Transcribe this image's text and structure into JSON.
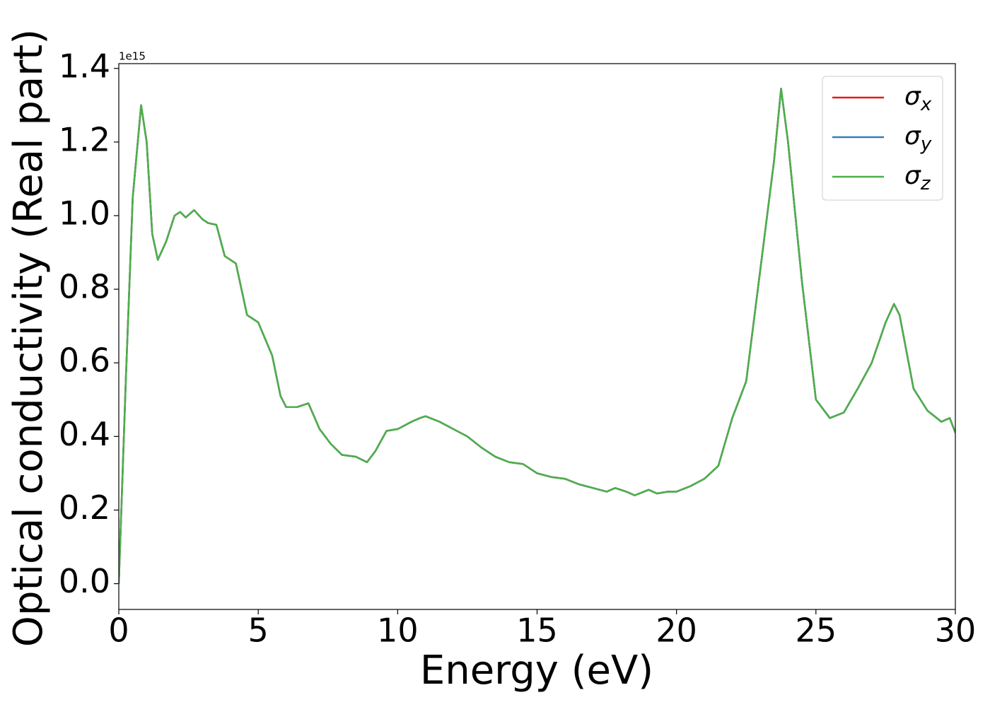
{
  "chart_data": {
    "type": "line",
    "x_label": "Energy (eV)",
    "y_label": "Optical conductivity (Real part)",
    "y_offset_text": "1e15",
    "x": [
      0,
      0.25,
      0.5,
      0.8,
      1.0,
      1.2,
      1.4,
      1.7,
      2.0,
      2.2,
      2.4,
      2.7,
      3.0,
      3.2,
      3.5,
      3.8,
      4.2,
      4.6,
      5.0,
      5.5,
      5.8,
      6.0,
      6.4,
      6.8,
      7.2,
      7.6,
      8.0,
      8.5,
      8.9,
      9.2,
      9.6,
      10.0,
      10.5,
      10.8,
      11.0,
      11.5,
      12.0,
      12.5,
      13.0,
      13.5,
      14.0,
      14.5,
      15.0,
      15.5,
      16.0,
      16.5,
      17.0,
      17.5,
      17.8,
      18.2,
      18.5,
      19.0,
      19.3,
      19.7,
      20.0,
      20.5,
      21.0,
      21.5,
      22.0,
      22.5,
      23.0,
      23.5,
      23.75,
      24.0,
      24.5,
      25.0,
      25.5,
      26.0,
      26.5,
      27.0,
      27.5,
      27.8,
      28.0,
      28.5,
      29.0,
      29.5,
      29.8,
      30.0
    ],
    "series": [
      {
        "name": "σx",
        "color": "#e41a1c",
        "values": [
          0.0,
          0.55,
          1.05,
          1.3,
          1.2,
          0.95,
          0.88,
          0.93,
          1.0,
          1.01,
          0.995,
          1.015,
          0.99,
          0.98,
          0.975,
          0.89,
          0.87,
          0.73,
          0.71,
          0.62,
          0.51,
          0.48,
          0.48,
          0.49,
          0.42,
          0.38,
          0.35,
          0.345,
          0.33,
          0.36,
          0.415,
          0.42,
          0.44,
          0.45,
          0.455,
          0.44,
          0.42,
          0.4,
          0.37,
          0.345,
          0.33,
          0.325,
          0.3,
          0.29,
          0.285,
          0.27,
          0.26,
          0.25,
          0.26,
          0.25,
          0.24,
          0.255,
          0.245,
          0.25,
          0.25,
          0.265,
          0.285,
          0.32,
          0.45,
          0.55,
          0.85,
          1.15,
          1.345,
          1.2,
          0.82,
          0.5,
          0.45,
          0.465,
          0.53,
          0.6,
          0.71,
          0.76,
          0.73,
          0.53,
          0.47,
          0.44,
          0.45,
          0.41
        ]
      },
      {
        "name": "σy",
        "color": "#377eb8",
        "values": [
          0.0,
          0.55,
          1.05,
          1.3,
          1.2,
          0.95,
          0.88,
          0.93,
          1.0,
          1.01,
          0.995,
          1.015,
          0.99,
          0.98,
          0.975,
          0.89,
          0.87,
          0.73,
          0.71,
          0.62,
          0.51,
          0.48,
          0.48,
          0.49,
          0.42,
          0.38,
          0.35,
          0.345,
          0.33,
          0.36,
          0.415,
          0.42,
          0.44,
          0.45,
          0.455,
          0.44,
          0.42,
          0.4,
          0.37,
          0.345,
          0.33,
          0.325,
          0.3,
          0.29,
          0.285,
          0.27,
          0.26,
          0.25,
          0.26,
          0.25,
          0.24,
          0.255,
          0.245,
          0.25,
          0.25,
          0.265,
          0.285,
          0.32,
          0.45,
          0.55,
          0.85,
          1.15,
          1.345,
          1.2,
          0.82,
          0.5,
          0.45,
          0.465,
          0.53,
          0.6,
          0.71,
          0.76,
          0.73,
          0.53,
          0.47,
          0.44,
          0.45,
          0.41
        ]
      },
      {
        "name": "σz",
        "color": "#4daf4a",
        "values": [
          0.0,
          0.55,
          1.05,
          1.3,
          1.2,
          0.95,
          0.88,
          0.93,
          1.0,
          1.01,
          0.995,
          1.015,
          0.99,
          0.98,
          0.975,
          0.89,
          0.87,
          0.73,
          0.71,
          0.62,
          0.51,
          0.48,
          0.48,
          0.49,
          0.42,
          0.38,
          0.35,
          0.345,
          0.33,
          0.36,
          0.415,
          0.42,
          0.44,
          0.45,
          0.455,
          0.44,
          0.42,
          0.4,
          0.37,
          0.345,
          0.33,
          0.325,
          0.3,
          0.29,
          0.285,
          0.27,
          0.26,
          0.25,
          0.26,
          0.25,
          0.24,
          0.255,
          0.245,
          0.25,
          0.25,
          0.265,
          0.285,
          0.32,
          0.45,
          0.55,
          0.85,
          1.15,
          1.345,
          1.2,
          0.82,
          0.5,
          0.45,
          0.465,
          0.53,
          0.6,
          0.71,
          0.76,
          0.73,
          0.53,
          0.47,
          0.44,
          0.45,
          0.41
        ]
      }
    ],
    "xlim": [
      0,
      30
    ],
    "xticks": [
      0,
      5,
      10,
      15,
      20,
      25,
      30
    ],
    "ylim": [
      -0.07,
      1.413
    ],
    "yticks": [
      {
        "value": 0,
        "label": "0.0"
      },
      0.2,
      0.4,
      0.6,
      0.8,
      {
        "value": 1,
        "label": "1.0"
      },
      1.2,
      1.4
    ],
    "grid": false,
    "legend": "upper right"
  }
}
